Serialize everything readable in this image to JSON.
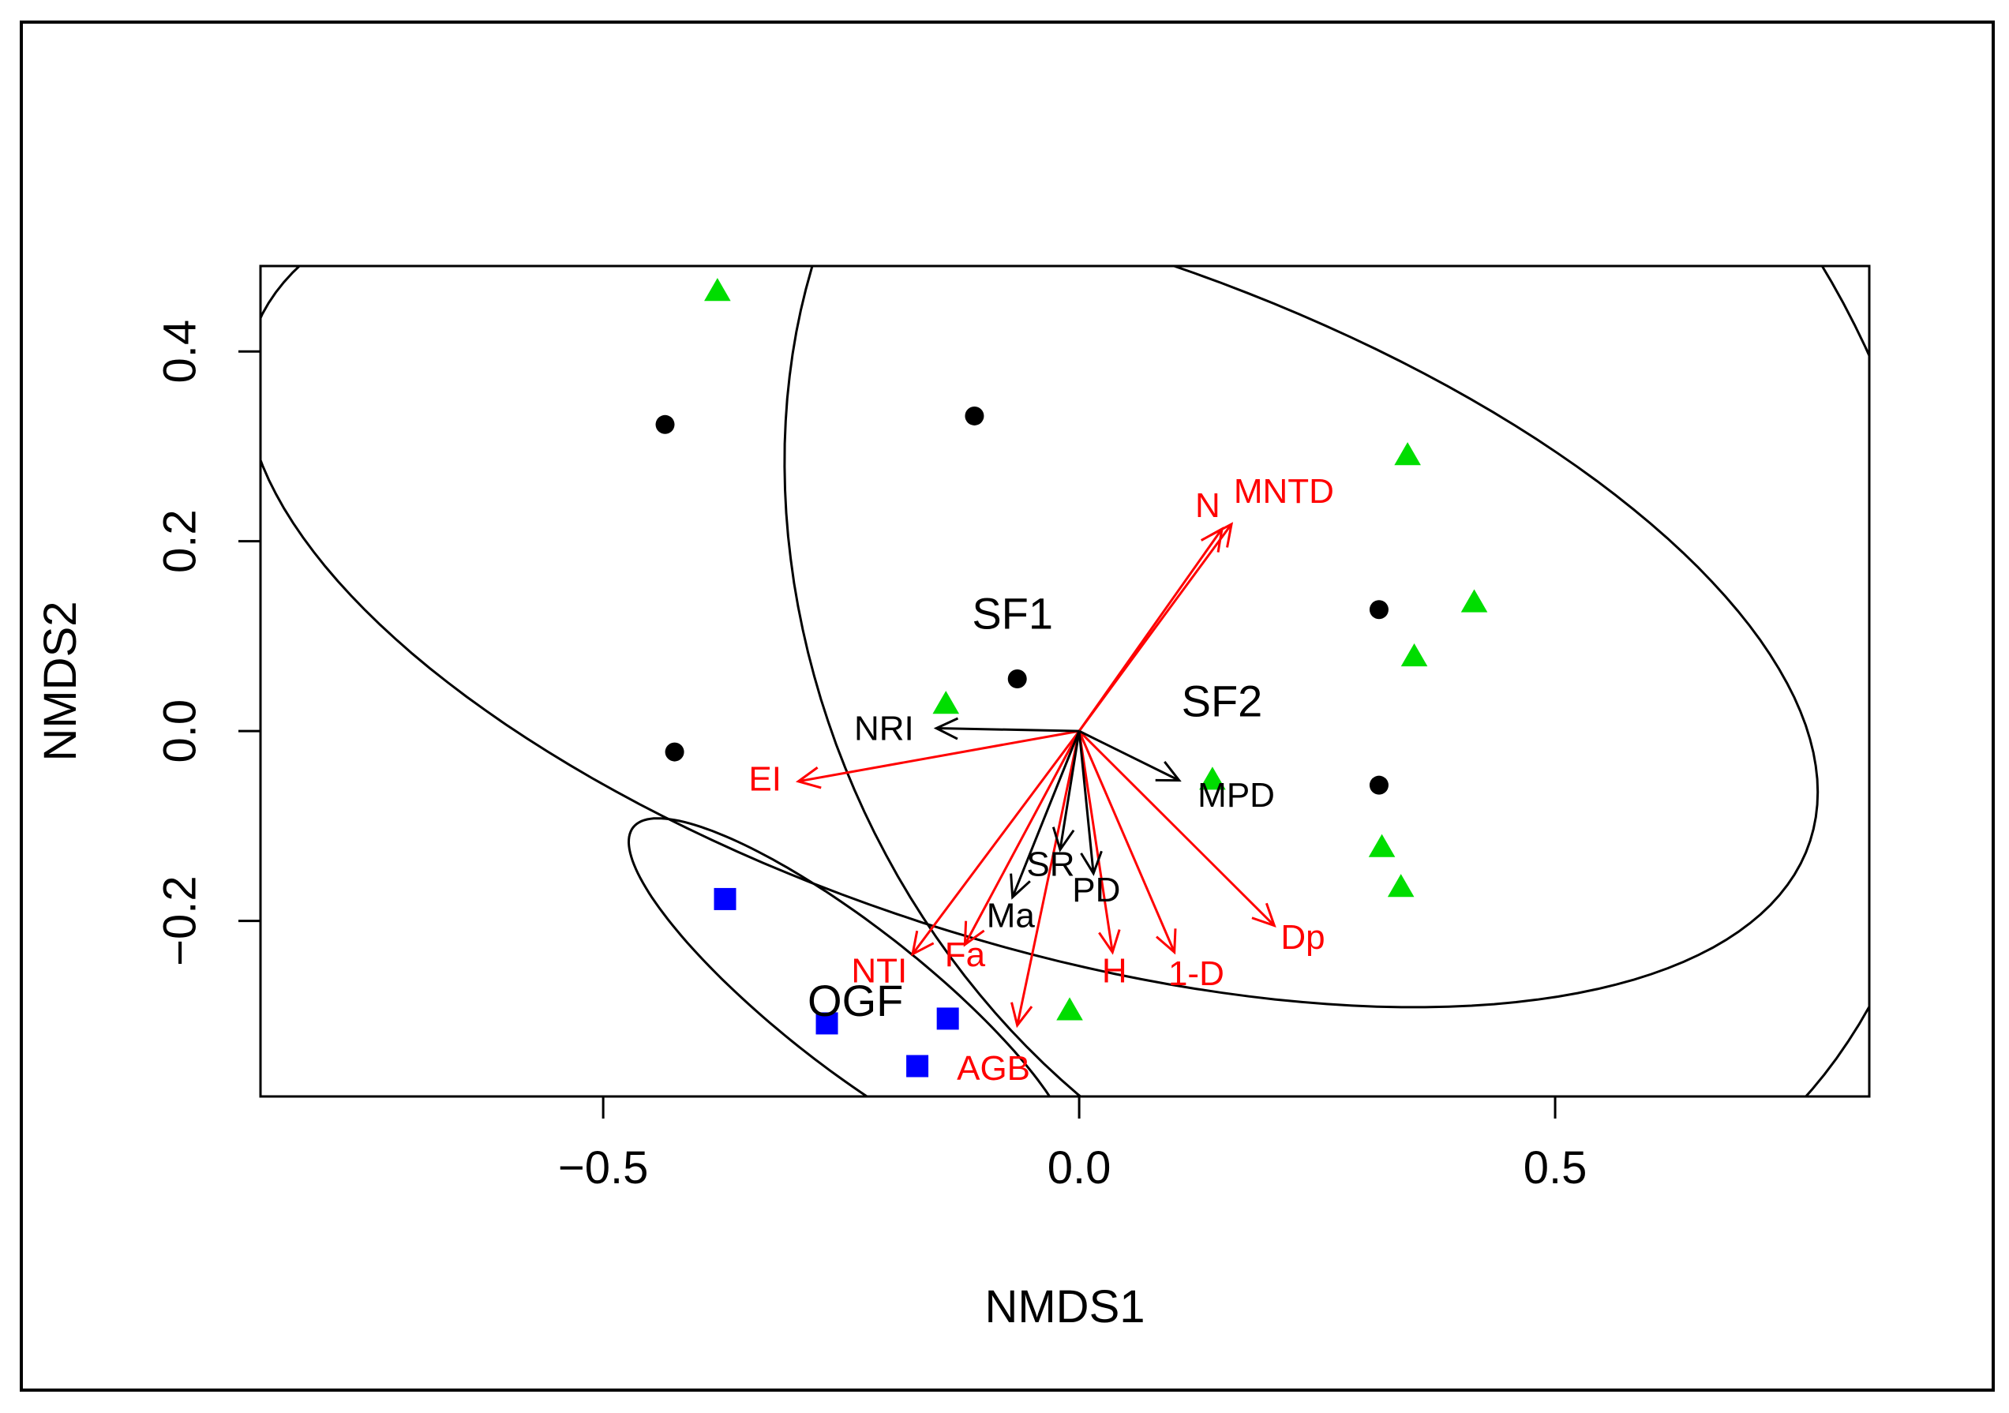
{
  "chart_data": {
    "type": "scatter",
    "subtype": "NMDS ordination biplot",
    "title": "",
    "xlabel": "NMDS1",
    "ylabel": "NMDS2",
    "xlim": [
      -0.86,
      0.83
    ],
    "ylim": [
      -0.385,
      0.49
    ],
    "x_ticks": [
      {
        "value": -0.5,
        "label": "−0.5"
      },
      {
        "value": 0.0,
        "label": "0.0"
      },
      {
        "value": 0.5,
        "label": "0.5"
      }
    ],
    "y_ticks": [
      {
        "value": -0.2,
        "label": "−0.2"
      },
      {
        "value": 0.0,
        "label": "0.0"
      },
      {
        "value": 0.2,
        "label": "0.2"
      },
      {
        "value": 0.4,
        "label": "0.4"
      }
    ],
    "grid": false,
    "series": [
      {
        "name": "SF1",
        "marker": "circle",
        "color": "#000000",
        "points": [
          {
            "x": -0.435,
            "y": 0.323
          },
          {
            "x": -0.11,
            "y": 0.332
          },
          {
            "x": -0.065,
            "y": 0.055
          },
          {
            "x": -0.425,
            "y": -0.022
          },
          {
            "x": 0.315,
            "y": 0.128
          },
          {
            "x": 0.315,
            "y": -0.057
          }
        ]
      },
      {
        "name": "SF2",
        "marker": "triangle",
        "color": "#00dd00",
        "points": [
          {
            "x": -0.38,
            "y": 0.463
          },
          {
            "x": 0.345,
            "y": 0.29
          },
          {
            "x": 0.415,
            "y": 0.135
          },
          {
            "x": 0.352,
            "y": 0.078
          },
          {
            "x": -0.14,
            "y": 0.028
          },
          {
            "x": 0.14,
            "y": -0.052
          },
          {
            "x": 0.318,
            "y": -0.123
          },
          {
            "x": 0.338,
            "y": -0.165
          },
          {
            "x": -0.01,
            "y": -0.295
          }
        ]
      },
      {
        "name": "OGF",
        "marker": "square",
        "color": "#0000ff",
        "points": [
          {
            "x": -0.372,
            "y": -0.177
          },
          {
            "x": -0.265,
            "y": -0.308
          },
          {
            "x": -0.138,
            "y": -0.303
          },
          {
            "x": -0.17,
            "y": -0.353
          }
        ]
      }
    ],
    "ellipses": [
      {
        "group": "SF1",
        "cx": -0.05,
        "cy": 0.15,
        "rx": 0.86,
        "ry": 0.37,
        "angle": -18
      },
      {
        "group": "SF2",
        "cx": 0.3,
        "cy": 0.16,
        "rx": 0.58,
        "ry": 0.73,
        "angle": 25
      },
      {
        "group": "OGF",
        "cx": -0.24,
        "cy": -0.28,
        "rx": 0.29,
        "ry": 0.075,
        "angle": -38
      }
    ],
    "group_labels": [
      {
        "text": "SF1",
        "x": -0.07,
        "y": 0.12
      },
      {
        "text": "SF2",
        "x": 0.15,
        "y": 0.028
      },
      {
        "text": "OGF",
        "x": -0.235,
        "y": -0.288
      }
    ],
    "vectors": [
      {
        "label": "N",
        "x": 0.15,
        "y": 0.213,
        "color": "#ff0000",
        "label_x": 0.135,
        "label_y": 0.235
      },
      {
        "label": "MNTD",
        "x": 0.16,
        "y": 0.218,
        "color": "#ff0000",
        "label_x": 0.215,
        "label_y": 0.25
      },
      {
        "label": "EI",
        "x": -0.295,
        "y": -0.053,
        "color": "#ff0000",
        "label_x": -0.33,
        "label_y": -0.053
      },
      {
        "label": "NTI",
        "x": -0.175,
        "y": -0.235,
        "color": "#ff0000",
        "label_x": -0.21,
        "label_y": -0.255
      },
      {
        "label": "Fa",
        "x": -0.12,
        "y": -0.225,
        "color": "#ff0000",
        "label_x": -0.12,
        "label_y": -0.238
      },
      {
        "label": "AGB",
        "x": -0.065,
        "y": -0.31,
        "color": "#ff0000",
        "label_x": -0.09,
        "label_y": -0.358
      },
      {
        "label": "H",
        "x": 0.035,
        "y": -0.233,
        "color": "#ff0000",
        "label_x": 0.037,
        "label_y": -0.255
      },
      {
        "label": "1-D",
        "x": 0.1,
        "y": -0.233,
        "color": "#ff0000",
        "label_x": 0.123,
        "label_y": -0.258
      },
      {
        "label": "Dp",
        "x": 0.205,
        "y": -0.205,
        "color": "#ff0000",
        "label_x": 0.235,
        "label_y": -0.22
      },
      {
        "label": "NRI",
        "x": -0.15,
        "y": 0.003,
        "color": "#000000",
        "label_x": -0.205,
        "label_y": 0.0
      },
      {
        "label": "MPD",
        "x": 0.105,
        "y": -0.052,
        "color": "#000000",
        "label_x": 0.165,
        "label_y": -0.07
      },
      {
        "label": "SR",
        "x": -0.02,
        "y": -0.125,
        "color": "#000000",
        "label_x": -0.03,
        "label_y": -0.143
      },
      {
        "label": "PD",
        "x": 0.015,
        "y": -0.15,
        "color": "#000000",
        "label_x": 0.018,
        "label_y": -0.17
      },
      {
        "label": "Ma",
        "x": -0.07,
        "y": -0.175,
        "color": "#000000",
        "label_x": -0.072,
        "label_y": -0.197
      }
    ]
  }
}
